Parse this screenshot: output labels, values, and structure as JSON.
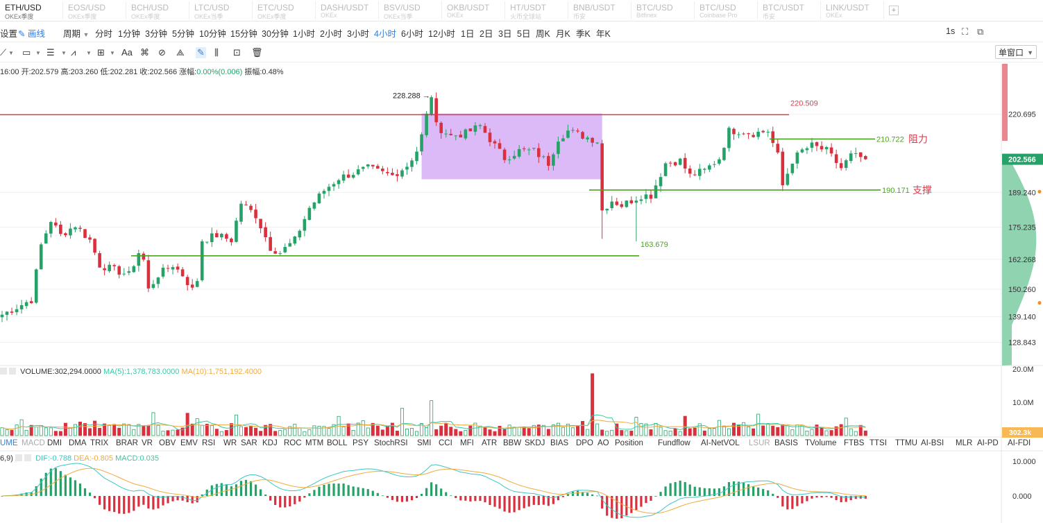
{
  "tabs": [
    {
      "symbol": "ETH/USD",
      "exchange": "OKEx季度",
      "active": true
    },
    {
      "symbol": "EOS/USD",
      "exchange": "OKEx季度"
    },
    {
      "symbol": "BCH/USD",
      "exchange": "OKEx季度"
    },
    {
      "symbol": "LTC/USD",
      "exchange": "OKEx当季"
    },
    {
      "symbol": "ETC/USD",
      "exchange": "OKEx季度"
    },
    {
      "symbol": "DASH/USDT",
      "exchange": "OKEx"
    },
    {
      "symbol": "BSV/USD",
      "exchange": "OKEx当季"
    },
    {
      "symbol": "OKB/USDT",
      "exchange": "OKEx"
    },
    {
      "symbol": "HT/USDT",
      "exchange": "火币全球站"
    },
    {
      "symbol": "BNB/USDT",
      "exchange": "币安"
    },
    {
      "symbol": "BTC/USD",
      "exchange": "Bitfinex"
    },
    {
      "symbol": "BTC/USD",
      "exchange": "Coinbase Pro"
    },
    {
      "symbol": "BTC/USDT",
      "exchange": "币安"
    },
    {
      "symbol": "LINK/USDT",
      "exchange": "OKEx"
    }
  ],
  "toolbar": {
    "settings_label": "设置",
    "draw_label": "画线",
    "period_label": "周期",
    "periods": [
      "分时",
      "1分钟",
      "3分钟",
      "5分钟",
      "10分钟",
      "15分钟",
      "30分钟",
      "1小时",
      "2小时",
      "3小时",
      "4小时",
      "6小时",
      "12小时",
      "1日",
      "2日",
      "3日",
      "5日",
      "周K",
      "月K",
      "季K",
      "年K"
    ],
    "active_period": "4小时",
    "interval_readout": "1s",
    "window_mode": "单窗口"
  },
  "draw_tools": {
    "text_tool": "Aa"
  },
  "ohlc": {
    "time": "16:00",
    "open_label": "开:",
    "open": "202.579",
    "high_label": "高:",
    "high": "203.260",
    "low_label": "低:",
    "low": "202.281",
    "close_label": "收:",
    "close": "202.566",
    "change_label": "涨幅:",
    "change": "0.00%(0.006)",
    "amp_label": "振幅:",
    "amp": "0.48%"
  },
  "colors": {
    "up": "#26a269",
    "down": "#d9303e",
    "accent": "#2f7de1",
    "box": "#c58cf2",
    "ma5": "#3ac7a6",
    "ma10": "#f2a93b",
    "dif": "#3ac7c0",
    "dea": "#f2a93b",
    "resistance_line": "#e03a4a",
    "support_line": "#4aa31e"
  },
  "chart_data": [
    {
      "type": "candlestick",
      "y_ticks": [
        "220.695",
        "189.240",
        "175.235",
        "162.268",
        "150.260",
        "139.140",
        "128.843"
      ],
      "y_tick_values": [
        220.695,
        189.24,
        175.235,
        162.268,
        150.26,
        139.14,
        128.843
      ],
      "ylim": [
        119.5,
        241.0
      ],
      "last_price": "202.566",
      "peak_label": "228.288",
      "annotations": [
        {
          "value": 220.509,
          "label": "220.509",
          "x_start": 0,
          "x_end": 205
        },
        {
          "value": 210.722,
          "label": "210.722",
          "note": "阻力",
          "x_start": 157,
          "x_end": 205
        },
        {
          "value": 190.171,
          "label": "190.171",
          "note": "支撑",
          "x_start": 120,
          "x_end": 205
        },
        {
          "value": 163.679,
          "label": "163.679",
          "x_start": 27,
          "x_end": 150
        }
      ],
      "consolidation_box": {
        "x_start": 86,
        "x_end": 123,
        "top": 221.0,
        "bottom": 194.5
      },
      "anchors": [
        [
          0,
          140
        ],
        [
          3,
          143
        ],
        [
          6,
          146
        ],
        [
          8,
          168
        ],
        [
          10,
          178
        ],
        [
          12,
          172
        ],
        [
          15,
          176
        ],
        [
          18,
          170
        ],
        [
          20,
          160
        ],
        [
          23,
          158
        ],
        [
          26,
          156
        ],
        [
          28,
          165
        ],
        [
          29,
          162
        ],
        [
          30,
          150
        ],
        [
          32,
          156
        ],
        [
          35,
          160
        ],
        [
          37,
          156
        ],
        [
          39,
          150
        ],
        [
          40,
          154
        ],
        [
          41,
          170
        ],
        [
          44,
          172
        ],
        [
          47,
          170
        ],
        [
          49,
          185
        ],
        [
          52,
          180
        ],
        [
          55,
          167
        ],
        [
          57,
          165
        ],
        [
          60,
          170
        ],
        [
          63,
          183
        ],
        [
          66,
          190
        ],
        [
          69,
          195
        ],
        [
          72,
          197
        ],
        [
          75,
          199
        ],
        [
          78,
          197
        ],
        [
          80,
          196
        ],
        [
          83,
          200
        ],
        [
          85,
          206
        ],
        [
          86,
          212
        ],
        [
          88,
          228.288
        ],
        [
          89,
          216
        ],
        [
          92,
          212
        ],
        [
          95,
          213
        ],
        [
          98,
          216
        ],
        [
          101,
          208
        ],
        [
          103,
          203
        ],
        [
          106,
          206
        ],
        [
          109,
          206
        ],
        [
          112,
          201
        ],
        [
          114,
          211
        ],
        [
          116,
          214
        ],
        [
          119,
          212
        ],
        [
          122,
          210
        ],
        [
          123,
          182
        ],
        [
          125,
          186
        ],
        [
          127,
          184
        ],
        [
          129,
          186
        ],
        [
          131,
          188
        ],
        [
          133,
          188
        ],
        [
          136,
          201
        ],
        [
          139,
          202
        ],
        [
          141,
          196
        ],
        [
          144,
          198
        ],
        [
          147,
          203
        ],
        [
          149,
          214
        ],
        [
          151,
          214
        ],
        [
          154,
          213
        ],
        [
          157,
          214
        ],
        [
          159,
          204
        ],
        [
          160,
          192
        ],
        [
          162,
          202
        ],
        [
          164,
          206
        ],
        [
          166,
          208
        ],
        [
          169,
          206
        ],
        [
          172,
          199
        ],
        [
          174,
          204
        ],
        [
          177,
          203
        ]
      ]
    },
    {
      "type": "bar",
      "title": "VOLUME:302,294.0000",
      "ma5_label": "MA(5):1,378,783.0000",
      "ma10_label": "MA(10):1,751,192.4000",
      "y_ticks": [
        "20.0M",
        "10.0M"
      ],
      "y_tick_values": [
        20000000,
        10000000
      ],
      "ylim": [
        0,
        20000000
      ],
      "last_label": "302.3k",
      "spike_value": 18600000
    },
    {
      "type": "bar",
      "params": "6,9)",
      "dif_label": "DIF:-0.788",
      "dea_label": "DEA:-0.805",
      "macd_label": "MACD:0.035",
      "y_ticks": [
        "10.000",
        "0.000"
      ],
      "y_tick_values": [
        10,
        0
      ]
    }
  ],
  "indicator_tabs": [
    "UME",
    "MACD",
    "DMI",
    "DMA",
    "TRIX",
    "BRAR",
    "VR",
    "OBV",
    "EMV",
    "RSI",
    "WR",
    "SAR",
    "KDJ",
    "ROC",
    "MTM",
    "BOLL",
    "PSY",
    "StochRSI",
    "SMI",
    "CCI",
    "MFI",
    "ATR",
    "BBW",
    "SKDJ",
    "BIAS",
    "DPO",
    "AO",
    "Position",
    "Fundflow",
    "AI-NetVOL",
    "LSUR",
    "BASIS",
    "TVolume",
    "FTBS",
    "TTSI",
    "TTMU",
    "AI-BSI",
    "MLR",
    "AI-PD",
    "AI-FDI"
  ],
  "indicator_selected": "UME",
  "indicator_dim": [
    "MACD",
    "LSUR"
  ]
}
